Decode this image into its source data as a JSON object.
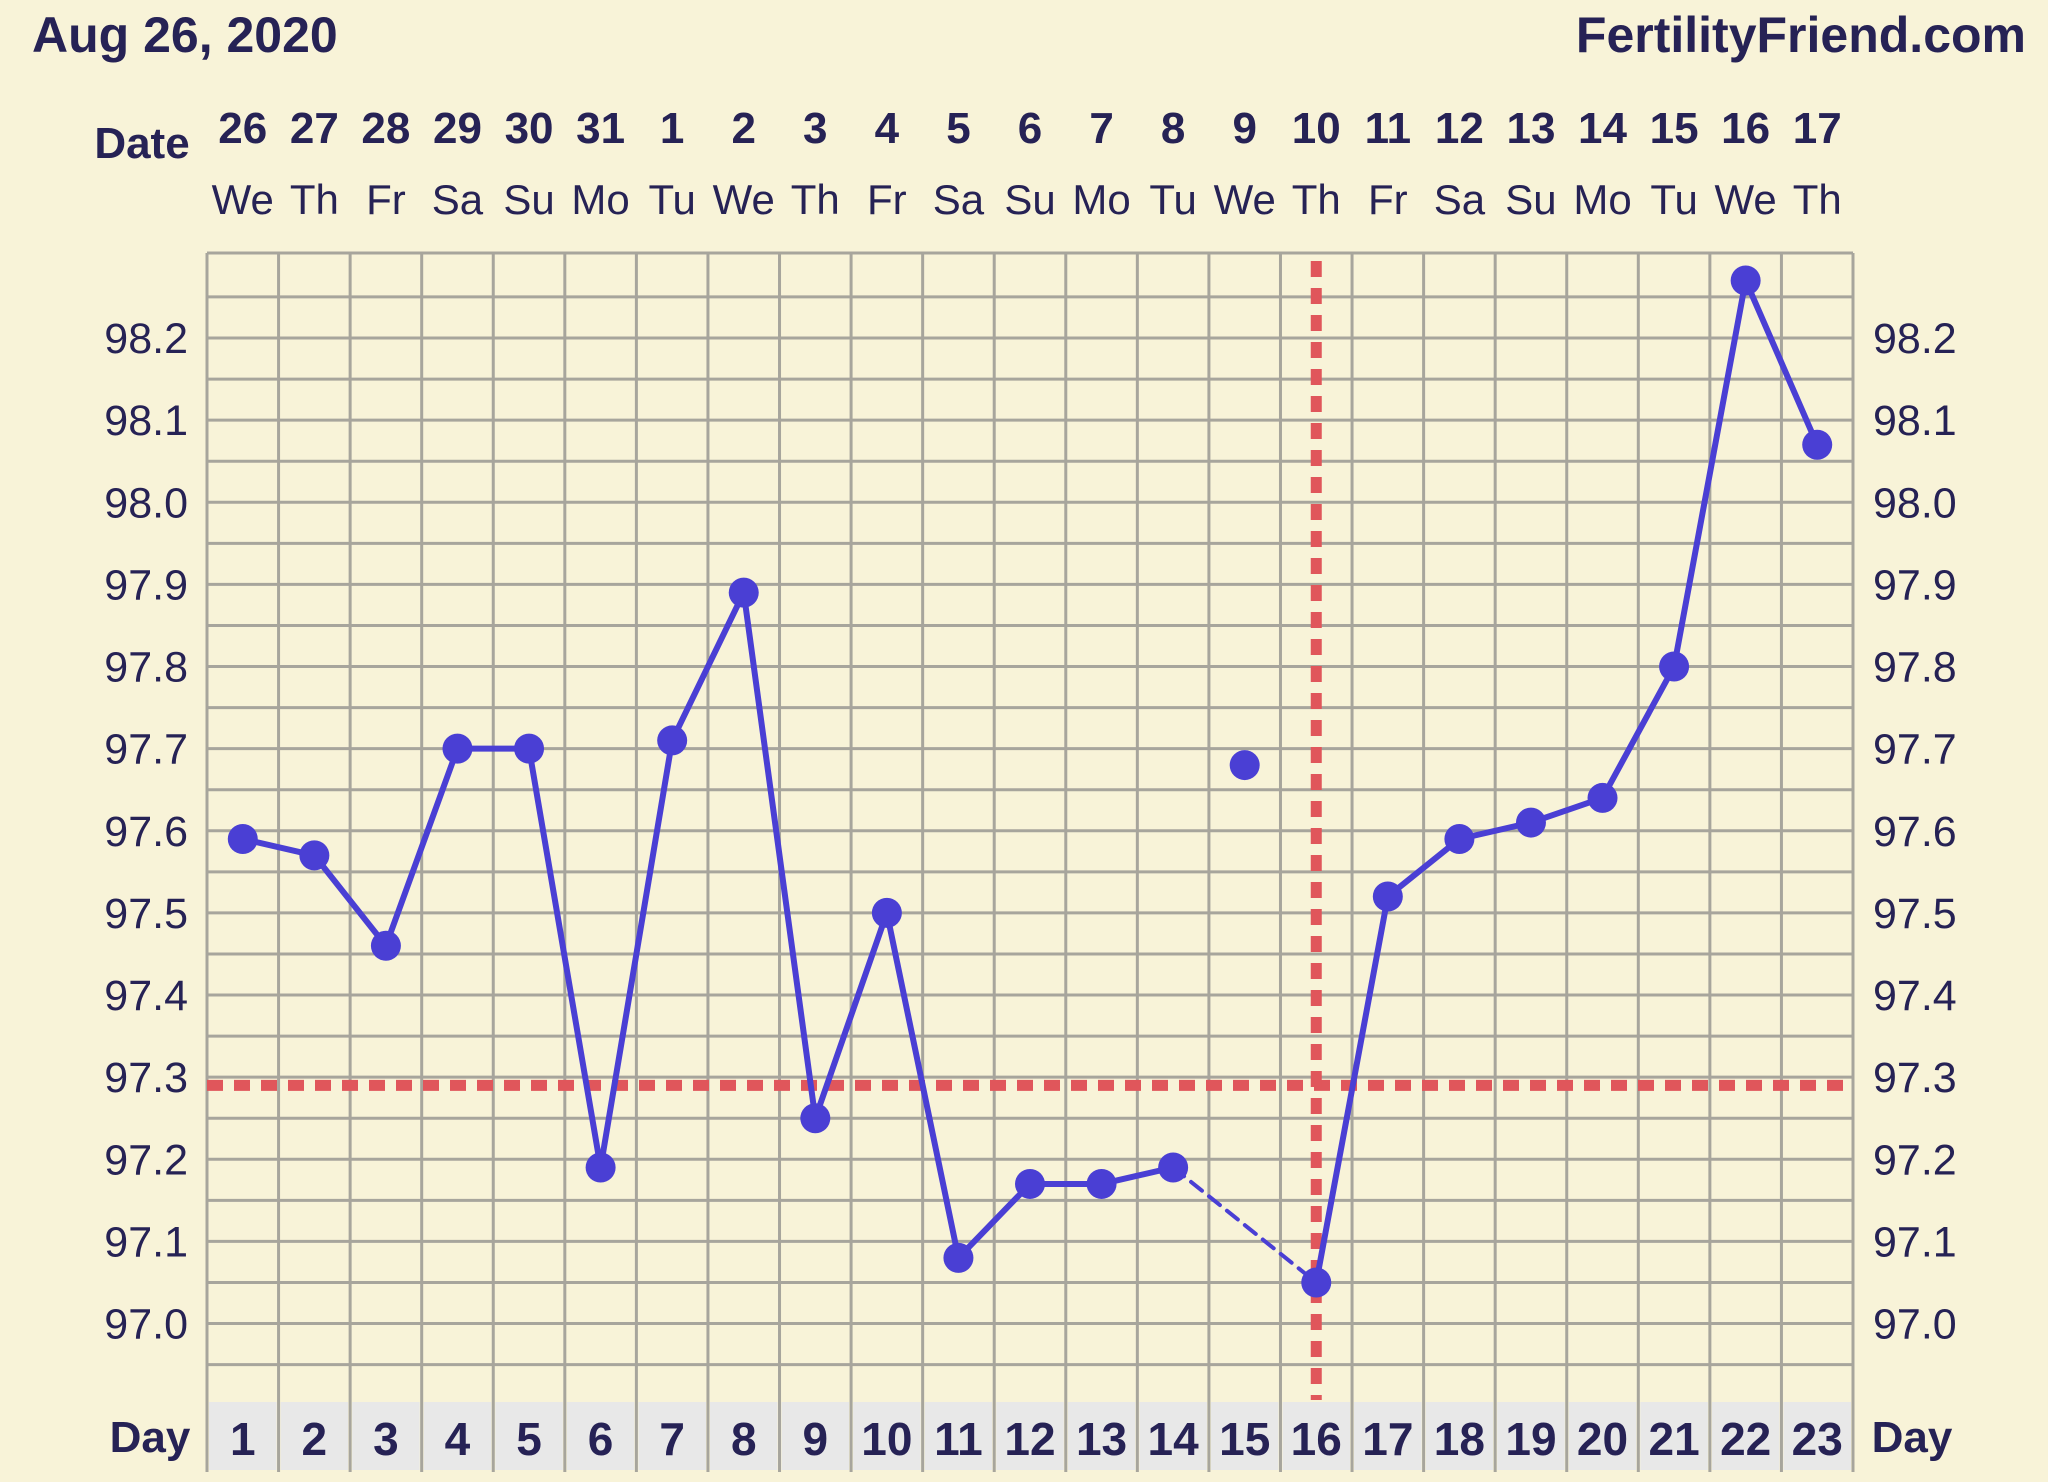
{
  "header": {
    "date": "Aug 26, 2020",
    "site": "FertilityFriend.com"
  },
  "colors": {
    "background": "#f8f3d8",
    "grid": "#a7a59c",
    "series": "#4a3fd4",
    "coverline": "#e0565b",
    "label_text": "#262255",
    "day_cell": "#e8e8e8"
  },
  "chart_data": {
    "type": "line",
    "row_labels": {
      "date": "Date",
      "day": "Day"
    },
    "dates": [
      "26",
      "27",
      "28",
      "29",
      "30",
      "31",
      "1",
      "2",
      "3",
      "4",
      "5",
      "6",
      "7",
      "8",
      "9",
      "10",
      "11",
      "12",
      "13",
      "14",
      "15",
      "16",
      "17"
    ],
    "weekdays": [
      "We",
      "Th",
      "Fr",
      "Sa",
      "Su",
      "Mo",
      "Tu",
      "We",
      "Th",
      "Fr",
      "Sa",
      "Su",
      "Mo",
      "Tu",
      "We",
      "Th",
      "Fr",
      "Sa",
      "Su",
      "Mo",
      "Tu",
      "We",
      "Th"
    ],
    "days": [
      "1",
      "2",
      "3",
      "4",
      "5",
      "6",
      "7",
      "8",
      "9",
      "10",
      "11",
      "12",
      "13",
      "14",
      "15",
      "16",
      "17",
      "18",
      "19",
      "20",
      "21",
      "22",
      "23"
    ],
    "y_ticks": [
      "98.2",
      "98.1",
      "98.0",
      "97.9",
      "97.8",
      "97.7",
      "97.6",
      "97.5",
      "97.4",
      "97.3",
      "97.2",
      "97.1",
      "97.0"
    ],
    "ylim": [
      96.93,
      98.32
    ],
    "series": [
      {
        "values": [
          97.59,
          97.57,
          97.46,
          97.7,
          97.7,
          97.19,
          97.71,
          97.89,
          97.25,
          97.5,
          97.08,
          97.17,
          97.17,
          97.19,
          97.68,
          97.05,
          97.52,
          97.59,
          97.61,
          97.64,
          97.8,
          98.27,
          98.07
        ],
        "excluded_points": [
          15
        ],
        "dashed_segments": [
          [
            14,
            16
          ]
        ]
      }
    ],
    "coverline": 97.29,
    "ovulation_day": 16,
    "grid": true
  }
}
